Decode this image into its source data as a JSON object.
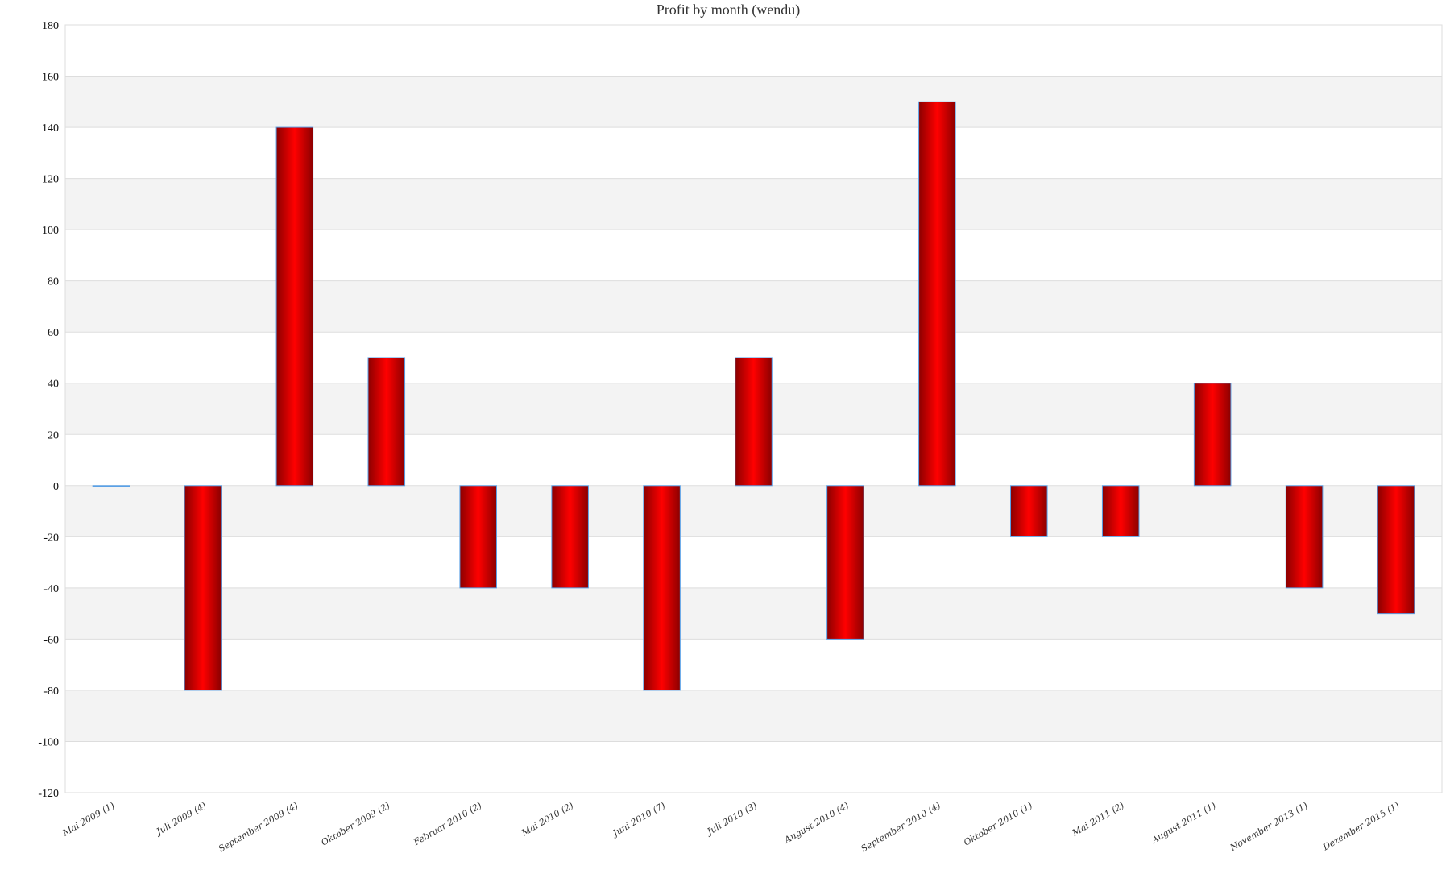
{
  "chart_data": {
    "type": "bar",
    "title": "Profit by month  (wendu)",
    "xlabel": "",
    "ylabel": "",
    "ylim": [
      -120,
      180
    ],
    "ytick_step": 20,
    "grid": true,
    "legend": "none",
    "categories": [
      "Mai 2009 (1)",
      "Juli 2009 (4)",
      "September 2009 (4)",
      "Oktober 2009 (2)",
      "Februar 2010 (2)",
      "Mai 2010 (2)",
      "Juni 2010 (7)",
      "Juli 2010 (3)",
      "August 2010 (4)",
      "September 2010 (4)",
      "Oktober 2010 (1)",
      "Mai 2011 (2)",
      "August 2011 (1)",
      "November 2013 (1)",
      "Dezember 2015 (1)"
    ],
    "values": [
      0,
      -80,
      140,
      50,
      -40,
      -40,
      -80,
      50,
      -60,
      150,
      -20,
      -20,
      40,
      -40,
      -50
    ],
    "colors": {
      "bar_edge": "#8b0000",
      "bar_center": "#ff0000",
      "bar_border": "#5aa0e6",
      "band": "#f3f3f3",
      "grid": "#dddddd"
    }
  }
}
